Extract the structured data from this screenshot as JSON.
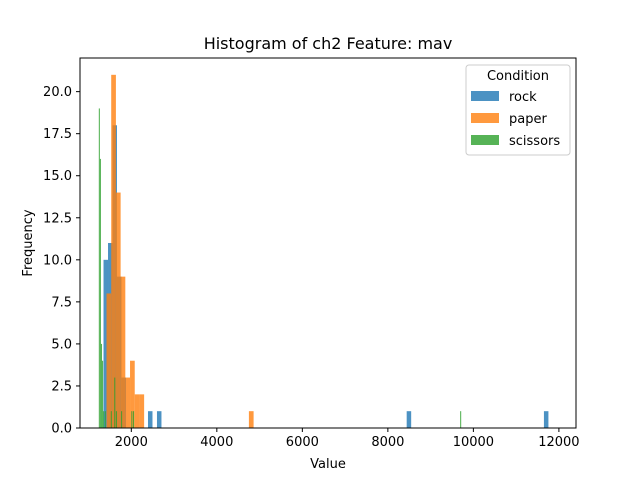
{
  "chart_data": {
    "type": "bar",
    "title": "Histogram of ch2 Feature: mav",
    "xlabel": "Value",
    "ylabel": "Frequency",
    "xlim": [
      800,
      12400
    ],
    "ylim": [
      0,
      22
    ],
    "xticks": [
      2000,
      4000,
      6000,
      8000,
      10000,
      12000
    ],
    "yticks": [
      0.0,
      2.5,
      5.0,
      7.5,
      10.0,
      12.5,
      15.0,
      17.5,
      20.0
    ],
    "xtick_labels": [
      "2000",
      "4000",
      "6000",
      "8000",
      "10000",
      "12000"
    ],
    "ytick_labels": [
      "0.0",
      "2.5",
      "5.0",
      "7.5",
      "10.0",
      "12.5",
      "15.0",
      "17.5",
      "20.0"
    ],
    "grid": false,
    "legend_title": "Condition",
    "legend_position": "top-right",
    "series": [
      {
        "name": "rock",
        "color": "#1f77b4",
        "bins": [
          {
            "x0": 1350,
            "x1": 1455,
            "y": 10
          },
          {
            "x0": 1455,
            "x1": 1560,
            "y": 11
          },
          {
            "x0": 1560,
            "x1": 1665,
            "y": 18
          },
          {
            "x0": 1665,
            "x1": 1770,
            "y": 9
          },
          {
            "x0": 1770,
            "x1": 1875,
            "y": 3
          },
          {
            "x0": 2390,
            "x1": 2495,
            "y": 1
          },
          {
            "x0": 2600,
            "x1": 2705,
            "y": 1
          },
          {
            "x0": 8440,
            "x1": 8545,
            "y": 1
          },
          {
            "x0": 11650,
            "x1": 11755,
            "y": 1
          }
        ]
      },
      {
        "name": "paper",
        "color": "#ff7f0e",
        "bins": [
          {
            "x0": 1420,
            "x1": 1530,
            "y": 8
          },
          {
            "x0": 1530,
            "x1": 1640,
            "y": 21
          },
          {
            "x0": 1640,
            "x1": 1750,
            "y": 14
          },
          {
            "x0": 1750,
            "x1": 1860,
            "y": 9
          },
          {
            "x0": 1860,
            "x1": 1970,
            "y": 3
          },
          {
            "x0": 1970,
            "x1": 2080,
            "y": 4
          },
          {
            "x0": 2080,
            "x1": 2190,
            "y": 2
          },
          {
            "x0": 2190,
            "x1": 2300,
            "y": 2
          },
          {
            "x0": 4750,
            "x1": 4860,
            "y": 1
          }
        ]
      },
      {
        "name": "scissors",
        "color": "#2ca02c",
        "bins": [
          {
            "x0": 1240,
            "x1": 1265,
            "y": 19
          },
          {
            "x0": 1265,
            "x1": 1290,
            "y": 16
          },
          {
            "x0": 1290,
            "x1": 1315,
            "y": 5
          },
          {
            "x0": 1315,
            "x1": 1340,
            "y": 4
          },
          {
            "x0": 1340,
            "x1": 1365,
            "y": 1
          },
          {
            "x0": 1380,
            "x1": 1405,
            "y": 1
          },
          {
            "x0": 1520,
            "x1": 1545,
            "y": 1
          },
          {
            "x0": 1600,
            "x1": 1625,
            "y": 3
          },
          {
            "x0": 1640,
            "x1": 1665,
            "y": 1
          },
          {
            "x0": 1760,
            "x1": 1785,
            "y": 1
          },
          {
            "x0": 2000,
            "x1": 2025,
            "y": 1
          },
          {
            "x0": 2040,
            "x1": 2065,
            "y": 1
          },
          {
            "x0": 9690,
            "x1": 9715,
            "y": 1
          }
        ]
      }
    ]
  }
}
